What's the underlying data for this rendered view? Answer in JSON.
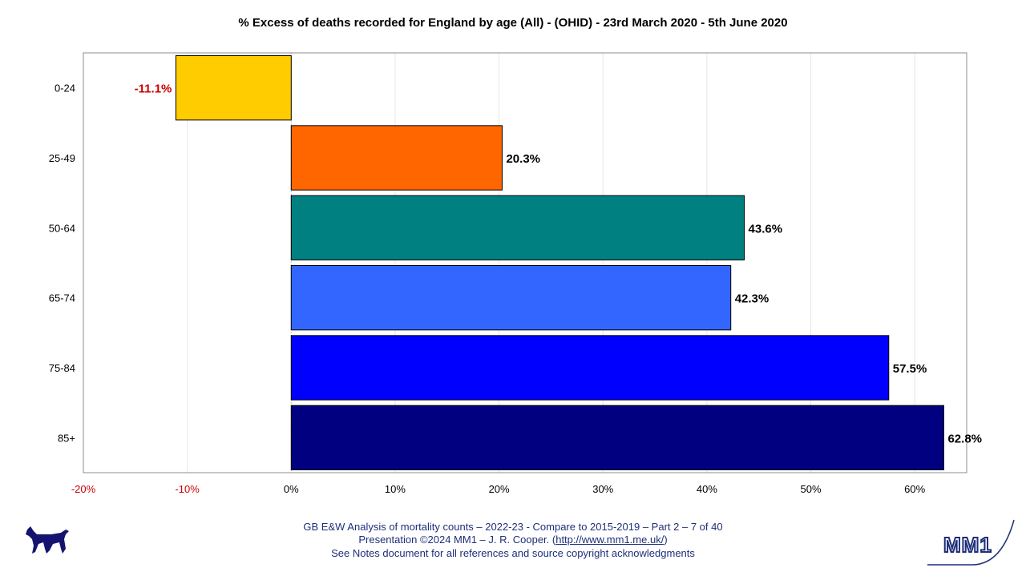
{
  "chart_data": {
    "type": "bar",
    "orientation": "horizontal",
    "title": "% Excess of deaths recorded for England by age (All) - (OHID) - 23rd March 2020 - 5th June 2020",
    "categories": [
      "0-24",
      "25-49",
      "50-64",
      "65-74",
      "75-84",
      "85+"
    ],
    "values": [
      -11.1,
      20.3,
      43.6,
      42.3,
      57.5,
      62.8
    ],
    "data_labels": [
      "-11.1%",
      "20.3%",
      "43.6%",
      "42.3%",
      "57.5%",
      "62.8%"
    ],
    "colors": [
      "#ffcc00",
      "#ff6600",
      "#008080",
      "#3366ff",
      "#0000ff",
      "#000080"
    ],
    "negative_label_color": "#cc0000",
    "xlim": [
      -20,
      65
    ],
    "x_ticks": [
      -20,
      -10,
      0,
      10,
      20,
      30,
      40,
      50,
      60
    ],
    "x_tick_labels": [
      "-20%",
      "-10%",
      "0%",
      "10%",
      "20%",
      "30%",
      "40%",
      "50%",
      "60%"
    ],
    "negative_tick_color": "#cc0000",
    "grid": "vertical",
    "legend": "none"
  },
  "footer": {
    "line1": "GB E&W Analysis of mortality counts – 2022-23 - Compare to 2015-2019 – Part 2 – 7 of 40",
    "line2_prefix": "Presentation ©2024 MM1 – J. R. Cooper. (",
    "line2_link": "http://www.mm1.me.uk/",
    "line2_suffix": ")",
    "line3": "See Notes document for all references and source copyright acknowledgments"
  },
  "logos": {
    "left": "dog-silhouette-icon",
    "right_text": "MM1"
  }
}
